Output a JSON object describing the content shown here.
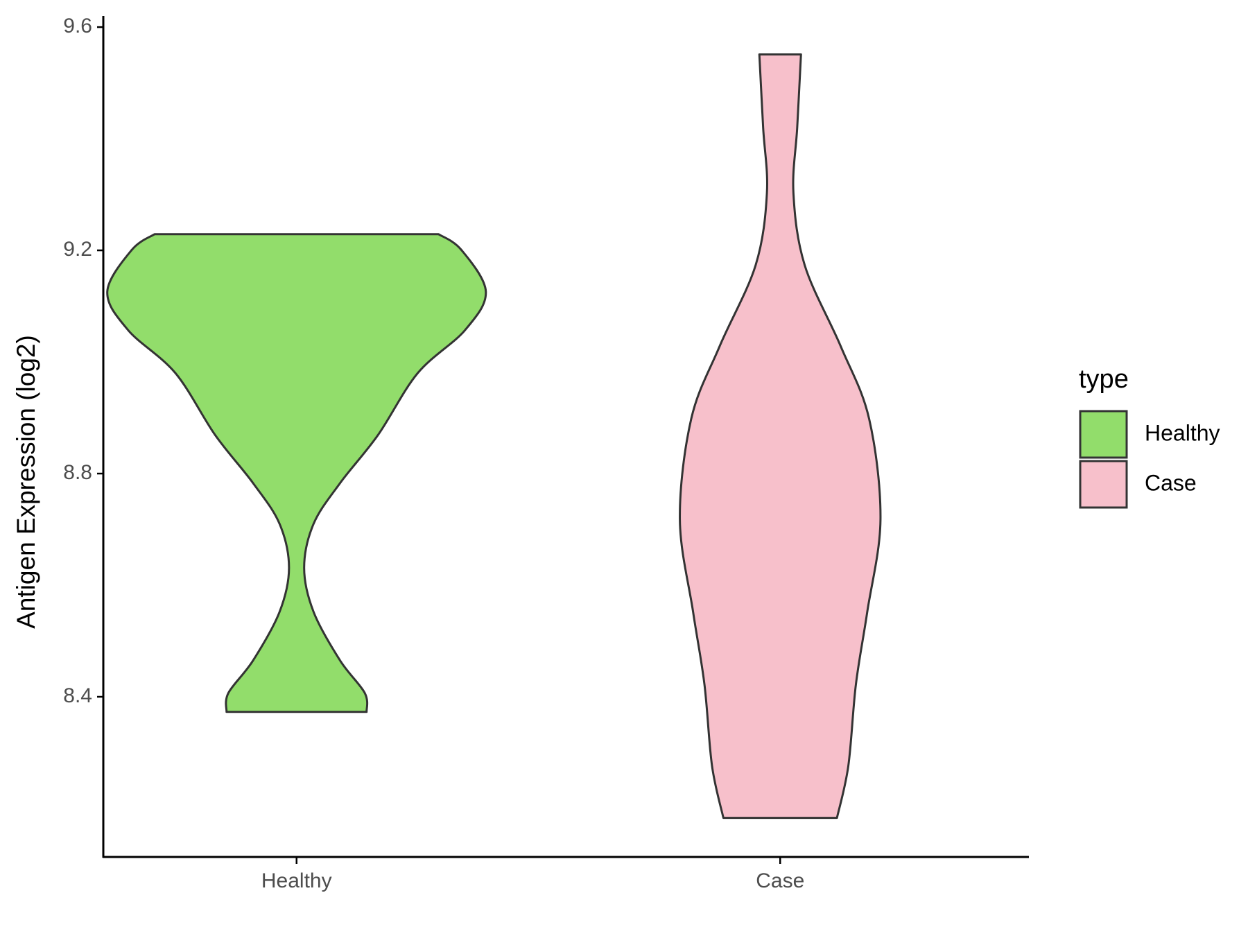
{
  "chart_data": {
    "type": "violin",
    "y_label": "Antigen Expression (log2)",
    "categories": [
      "Healthy",
      "Case"
    ],
    "legend_title": "type",
    "legend_position": "right",
    "ylim": [
      8.113,
      9.62
    ],
    "yticks": [
      8.4,
      8.8,
      9.2,
      9.6
    ],
    "series": [
      {
        "name": "Healthy",
        "color": "#92dd6b",
        "y": [
          9.229,
          9.201,
          9.126,
          9.057,
          8.98,
          8.869,
          8.783,
          8.71,
          8.631,
          8.552,
          8.465,
          8.407,
          8.373
        ],
        "density": [
          0.75,
          0.87,
          1.0,
          0.89,
          0.64,
          0.43,
          0.23,
          0.09,
          0.04,
          0.09,
          0.23,
          0.36,
          0.37
        ]
      },
      {
        "name": "Case",
        "color": "#f7c0cb",
        "y": [
          9.551,
          9.42,
          9.303,
          9.173,
          9.028,
          8.898,
          8.718,
          8.552,
          8.422,
          8.276,
          8.183
        ],
        "density": [
          0.11,
          0.09,
          0.07,
          0.13,
          0.32,
          0.47,
          0.53,
          0.46,
          0.4,
          0.36,
          0.3
        ]
      }
    ]
  }
}
